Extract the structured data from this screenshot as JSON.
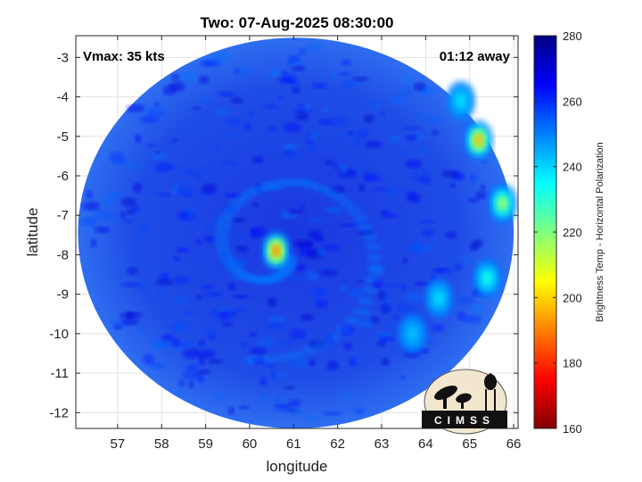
{
  "chart_data": {
    "type": "heatmap",
    "title": "Two: 07-Aug-2025 08:30:00",
    "xlabel": "longitude",
    "ylabel": "latitude",
    "xlim": [
      56.05,
      66.1
    ],
    "ylim": [
      -12.4,
      -2.45
    ],
    "xticks": [
      57,
      58,
      59,
      60,
      61,
      62,
      63,
      64,
      65,
      66
    ],
    "yticks": [
      -3,
      -4,
      -5,
      -6,
      -7,
      -8,
      -9,
      -10,
      -11,
      -12
    ],
    "grid": true,
    "annotations": {
      "left": "Vmax: 35 kts",
      "right": "01:12 away"
    },
    "logo_text": "CIMSS",
    "colorbar": {
      "label": "Brightness Temp - Horizontal Polarization",
      "range": [
        160,
        280
      ],
      "ticks": [
        160,
        180,
        200,
        220,
        240,
        260,
        280
      ],
      "colormap": "jet"
    },
    "swath": {
      "center_lon": 61.05,
      "center_lat": -7.45,
      "radius_lon": 4.95,
      "radius_lat": 4.95,
      "background_value": 262
    },
    "features": [
      {
        "name": "core",
        "lon": 60.6,
        "lat": -7.9,
        "value": 188
      },
      {
        "name": "rainband-east-1",
        "lon": 65.2,
        "lat": -5.1,
        "value": 195
      },
      {
        "name": "rainband-east-2",
        "lon": 65.75,
        "lat": -6.7,
        "value": 215
      },
      {
        "name": "rainband-east-3",
        "lon": 65.4,
        "lat": -8.6,
        "value": 232
      },
      {
        "name": "rainband-east-4",
        "lon": 64.3,
        "lat": -9.1,
        "value": 238
      },
      {
        "name": "rainband-east-5",
        "lon": 64.8,
        "lat": -4.1,
        "value": 238
      },
      {
        "name": "rainband-se",
        "lon": 63.7,
        "lat": -10.0,
        "value": 242
      }
    ]
  }
}
